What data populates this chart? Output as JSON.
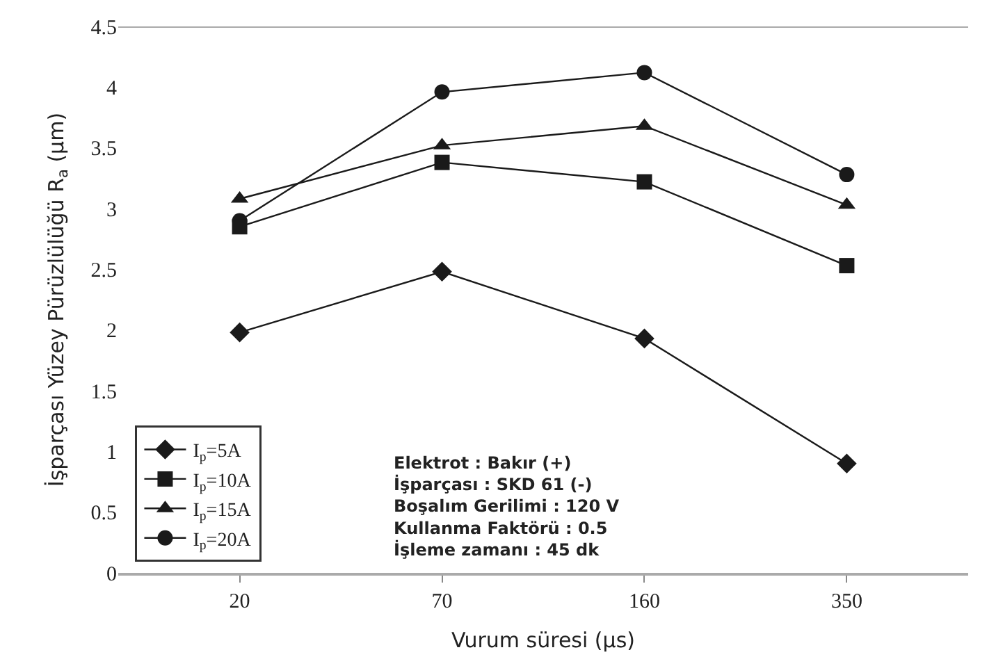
{
  "chart_data": {
    "type": "line",
    "xlabel": "Vurum süresi (μs)",
    "ylabel": "İşparçası Yüzey Pürüzlülüğü R$_{a}$ (μm)",
    "categories": [
      "20",
      "70",
      "160",
      "350"
    ],
    "series": [
      {
        "name": "I$_{p}$=5A",
        "color": "#1a1a1a",
        "marker": "diamond",
        "values": [
          1.98,
          2.48,
          1.93,
          0.9
        ]
      },
      {
        "name": "I$_{p}$=10A",
        "color": "#1a1a1a",
        "marker": "square",
        "values": [
          2.85,
          3.38,
          3.22,
          2.53
        ]
      },
      {
        "name": "I$_{p}$=15A",
        "color": "#1a1a1a",
        "marker": "triangle",
        "values": [
          3.08,
          3.52,
          3.68,
          3.03
        ]
      },
      {
        "name": "I$_{p}$=20A",
        "color": "#1a1a1a",
        "marker": "circle",
        "values": [
          2.9,
          3.96,
          4.12,
          3.28
        ]
      }
    ],
    "ylim": [
      0,
      4.5
    ],
    "yticks": [
      0,
      0.5,
      1,
      1.5,
      2,
      2.5,
      3,
      3.5,
      4,
      4.5
    ],
    "legend": "bottom left",
    "line_style": "solid",
    "annotations": [
      "Elektrot : Bakır (+)\nİşparçası : SKD 61 (-)\nBoşalım Gerilimi : 120 V\nKullanma Faktörü : 0.5\nİşleme zamanı : 45 dk"
    ]
  }
}
